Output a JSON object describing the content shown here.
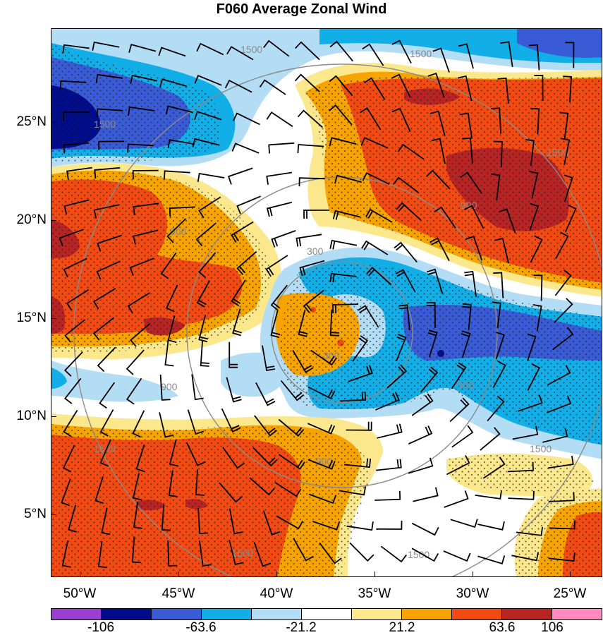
{
  "title": "F060 Average Zonal Wind",
  "lat_labels": [
    "25°N",
    "20°N",
    "15°N",
    "10°N",
    "5°N"
  ],
  "lon_labels": [
    "50°W",
    "45°W",
    "40°W",
    "35°W",
    "30°W",
    "25°W"
  ],
  "range_ring_labels": [
    "300",
    "900",
    "1500"
  ],
  "colorbar": {
    "colors": [
      "#9b3fd3",
      "#000c8c",
      "#3a5bd6",
      "#12aee8",
      "#b3ddf5",
      "#ffffff",
      "#fbe78c",
      "#f7a300",
      "#f24a12",
      "#b82424",
      "#ff8ac0"
    ],
    "labels": [
      "-106",
      "-63.6",
      "-21.2",
      "21.2",
      "63.6",
      "106"
    ]
  }
}
